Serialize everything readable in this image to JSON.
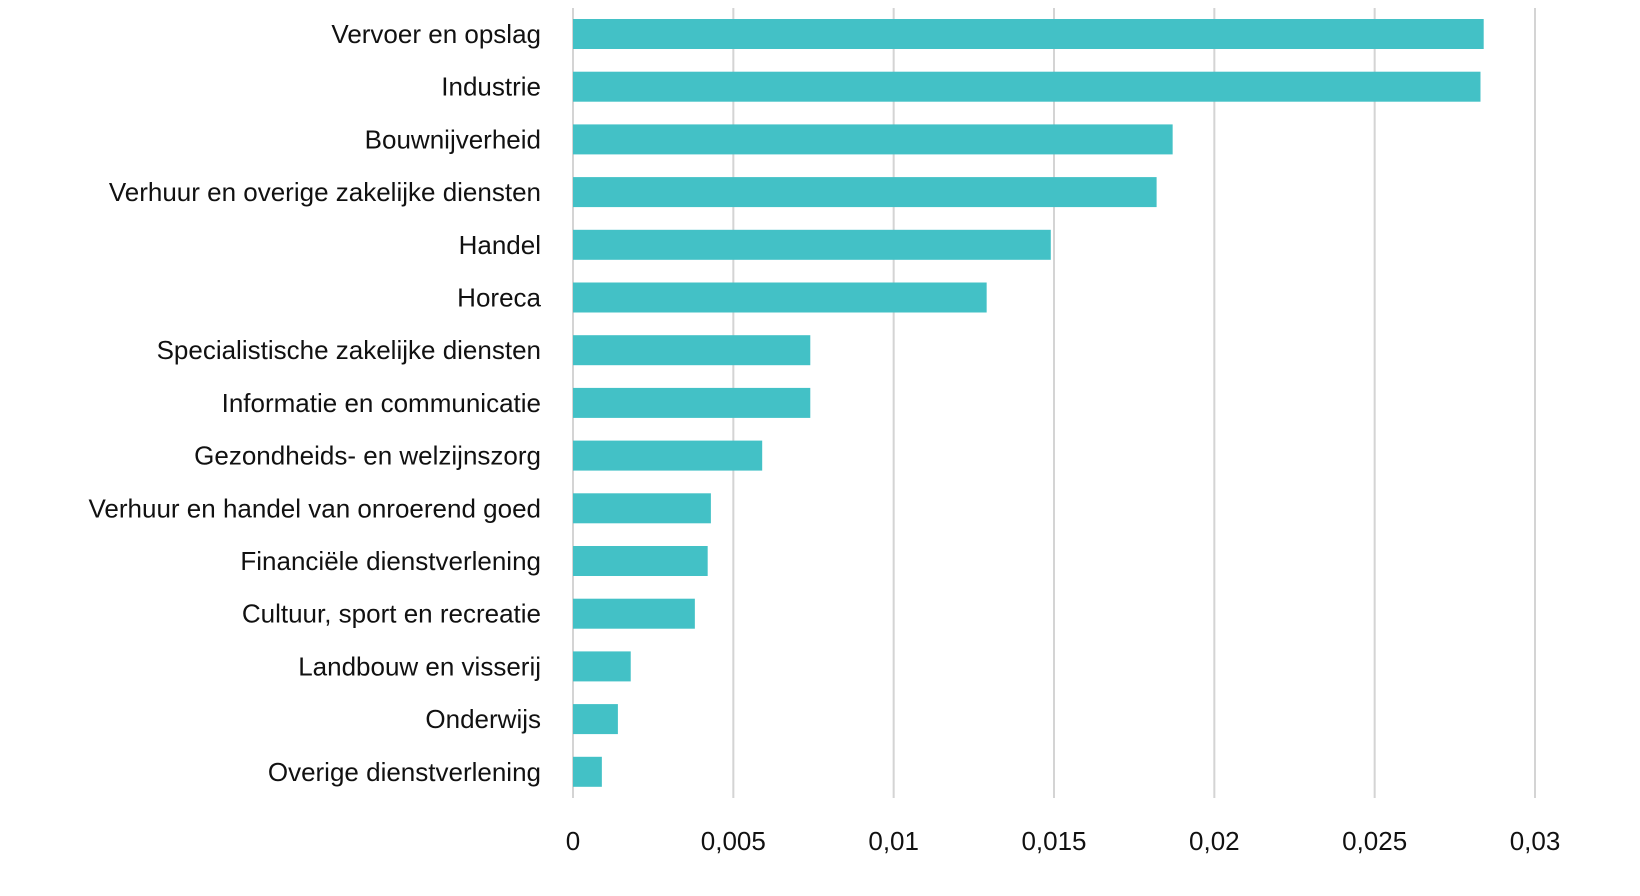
{
  "chart_data": {
    "type": "bar",
    "orientation": "horizontal",
    "categories": [
      "Vervoer en opslag ",
      "Industrie",
      "Bouwnijverheid",
      "Verhuur en overige zakelijke diensten",
      "Handel",
      "Horeca",
      "Specialistische zakelijke diensten",
      "Informatie en communicatie",
      "Gezondheids- en welzijnszorg ",
      "Verhuur en handel van onroerend goed",
      "Financiële dienstverlening",
      "Cultuur, sport en recreatie",
      "Landbouw en visserij",
      "Onderwijs ",
      "Overige dienstverlening"
    ],
    "values": [
      0.0284,
      0.0283,
      0.0187,
      0.0182,
      0.0149,
      0.0129,
      0.0074,
      0.0074,
      0.0059,
      0.0043,
      0.0042,
      0.0038,
      0.0018,
      0.0014,
      0.0009
    ],
    "xlim": [
      0,
      0.03
    ],
    "x_ticks": [
      "0",
      "0,005",
      "0,01",
      "0,015",
      "0,02",
      "0,025",
      "0,03"
    ],
    "x_tick_values": [
      0,
      0.005,
      0.01,
      0.015,
      0.02,
      0.025,
      0.03
    ],
    "title": "",
    "xlabel": "",
    "ylabel": "",
    "grid": true,
    "legend": "none",
    "bar_color": "#43c1c6"
  }
}
